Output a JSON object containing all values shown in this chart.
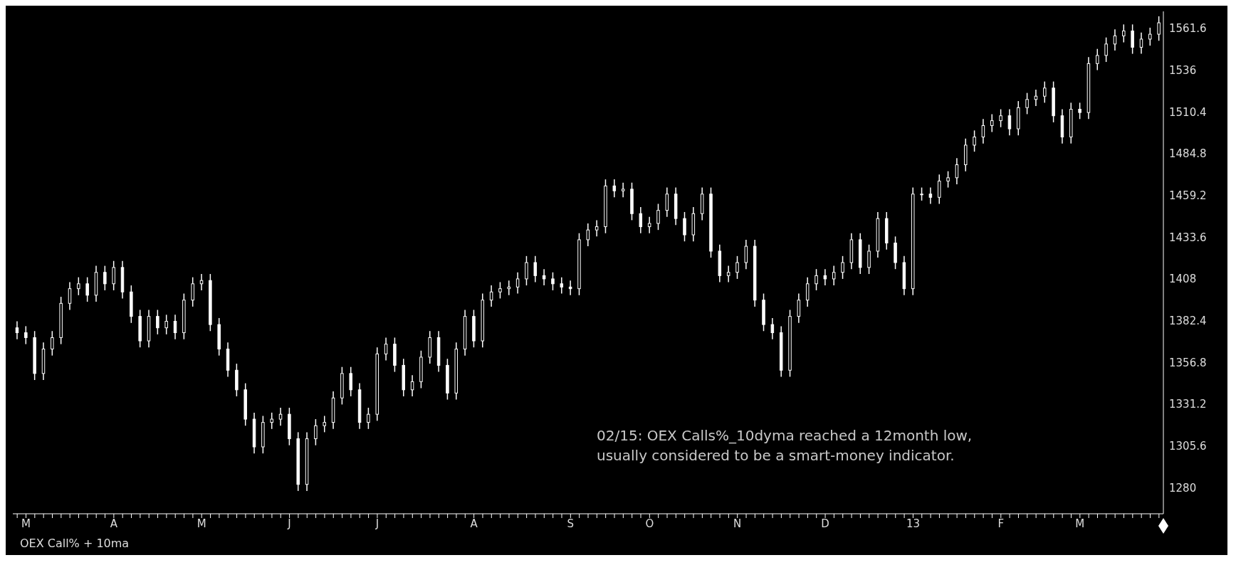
{
  "chart_data": {
    "type": "candlestick",
    "categories": [
      null,
      "M",
      null,
      null,
      null,
      null,
      null,
      null,
      null,
      null,
      null,
      "A",
      null,
      null,
      null,
      null,
      null,
      null,
      null,
      null,
      null,
      "M",
      null,
      null,
      null,
      null,
      null,
      null,
      null,
      null,
      null,
      "J",
      null,
      null,
      null,
      null,
      null,
      null,
      null,
      null,
      null,
      "J",
      null,
      null,
      null,
      null,
      null,
      null,
      null,
      null,
      null,
      null,
      "A",
      null,
      null,
      null,
      null,
      null,
      null,
      null,
      null,
      null,
      null,
      "S",
      null,
      null,
      null,
      null,
      null,
      null,
      null,
      null,
      "O",
      null,
      null,
      null,
      null,
      null,
      null,
      null,
      null,
      null,
      "N",
      null,
      null,
      null,
      null,
      null,
      null,
      null,
      null,
      null,
      "D",
      null,
      null,
      null,
      null,
      null,
      null,
      null,
      null,
      null,
      "13",
      null,
      null,
      null,
      null,
      null,
      null,
      null,
      null,
      null,
      "F",
      null,
      null,
      null,
      null,
      null,
      null,
      null,
      null,
      "M",
      null,
      null,
      null,
      null,
      null,
      null,
      null,
      null,
      null
    ],
    "ohlc": [
      [
        1378,
        1382,
        1371,
        1375
      ],
      [
        1375,
        1379,
        1368,
        1372
      ],
      [
        1372,
        1376,
        1346,
        1350
      ],
      [
        1350,
        1369,
        1346,
        1365
      ],
      [
        1365,
        1376,
        1361,
        1372
      ],
      [
        1372,
        1397,
        1368,
        1393
      ],
      [
        1393,
        1406,
        1389,
        1402
      ],
      [
        1402,
        1409,
        1398,
        1405
      ],
      [
        1405,
        1409,
        1394,
        1398
      ],
      [
        1398,
        1416,
        1394,
        1412
      ],
      [
        1412,
        1416,
        1401,
        1405
      ],
      [
        1405,
        1419,
        1401,
        1415
      ],
      [
        1415,
        1419,
        1396,
        1400
      ],
      [
        1400,
        1404,
        1381,
        1385
      ],
      [
        1385,
        1389,
        1366,
        1370
      ],
      [
        1370,
        1389,
        1366,
        1385
      ],
      [
        1385,
        1389,
        1374,
        1378
      ],
      [
        1378,
        1386,
        1374,
        1382
      ],
      [
        1382,
        1386,
        1371,
        1375
      ],
      [
        1375,
        1399,
        1371,
        1395
      ],
      [
        1395,
        1409,
        1391,
        1405
      ],
      [
        1405,
        1411,
        1401,
        1407
      ],
      [
        1407,
        1411,
        1376,
        1380
      ],
      [
        1380,
        1384,
        1361,
        1365
      ],
      [
        1365,
        1369,
        1348,
        1352
      ],
      [
        1352,
        1356,
        1336,
        1340
      ],
      [
        1340,
        1344,
        1318,
        1322
      ],
      [
        1322,
        1326,
        1301,
        1305
      ],
      [
        1305,
        1324,
        1301,
        1320
      ],
      [
        1320,
        1326,
        1316,
        1322
      ],
      [
        1322,
        1329,
        1318,
        1325
      ],
      [
        1325,
        1329,
        1306,
        1310
      ],
      [
        1310,
        1314,
        1278,
        1282
      ],
      [
        1282,
        1314,
        1278,
        1310
      ],
      [
        1310,
        1322,
        1306,
        1318
      ],
      [
        1318,
        1324,
        1314,
        1320
      ],
      [
        1320,
        1339,
        1316,
        1335
      ],
      [
        1335,
        1354,
        1331,
        1350
      ],
      [
        1350,
        1354,
        1336,
        1340
      ],
      [
        1340,
        1344,
        1316,
        1320
      ],
      [
        1320,
        1329,
        1316,
        1325
      ],
      [
        1325,
        1366,
        1321,
        1362
      ],
      [
        1362,
        1372,
        1358,
        1368
      ],
      [
        1368,
        1372,
        1351,
        1355
      ],
      [
        1355,
        1359,
        1336,
        1340
      ],
      [
        1340,
        1349,
        1336,
        1345
      ],
      [
        1345,
        1364,
        1341,
        1360
      ],
      [
        1360,
        1376,
        1356,
        1372
      ],
      [
        1372,
        1376,
        1351,
        1355
      ],
      [
        1355,
        1359,
        1334,
        1338
      ],
      [
        1338,
        1369,
        1334,
        1365
      ],
      [
        1365,
        1389,
        1361,
        1385
      ],
      [
        1385,
        1389,
        1366,
        1370
      ],
      [
        1370,
        1399,
        1366,
        1395
      ],
      [
        1395,
        1404,
        1391,
        1400
      ],
      [
        1400,
        1406,
        1396,
        1402
      ],
      [
        1402,
        1407,
        1398,
        1403
      ],
      [
        1403,
        1412,
        1399,
        1408
      ],
      [
        1408,
        1422,
        1404,
        1418
      ],
      [
        1418,
        1422,
        1406,
        1410
      ],
      [
        1410,
        1414,
        1404,
        1408
      ],
      [
        1408,
        1412,
        1401,
        1405
      ],
      [
        1405,
        1409,
        1399,
        1403
      ],
      [
        1403,
        1407,
        1398,
        1402
      ],
      [
        1402,
        1436,
        1398,
        1432
      ],
      [
        1432,
        1442,
        1428,
        1438
      ],
      [
        1438,
        1444,
        1434,
        1440
      ],
      [
        1440,
        1469,
        1436,
        1465
      ],
      [
        1465,
        1469,
        1458,
        1462
      ],
      [
        1462,
        1467,
        1458,
        1463
      ],
      [
        1463,
        1467,
        1444,
        1448
      ],
      [
        1448,
        1452,
        1436,
        1440
      ],
      [
        1440,
        1446,
        1436,
        1442
      ],
      [
        1442,
        1454,
        1438,
        1450
      ],
      [
        1450,
        1464,
        1446,
        1460
      ],
      [
        1460,
        1464,
        1441,
        1445
      ],
      [
        1445,
        1449,
        1431,
        1435
      ],
      [
        1435,
        1452,
        1431,
        1448
      ],
      [
        1448,
        1464,
        1444,
        1460
      ],
      [
        1460,
        1464,
        1421,
        1425
      ],
      [
        1425,
        1429,
        1406,
        1410
      ],
      [
        1410,
        1416,
        1406,
        1412
      ],
      [
        1412,
        1422,
        1408,
        1418
      ],
      [
        1418,
        1432,
        1414,
        1428
      ],
      [
        1428,
        1432,
        1391,
        1395
      ],
      [
        1395,
        1399,
        1376,
        1380
      ],
      [
        1380,
        1384,
        1371,
        1375
      ],
      [
        1375,
        1379,
        1348,
        1352
      ],
      [
        1352,
        1389,
        1348,
        1385
      ],
      [
        1385,
        1399,
        1381,
        1395
      ],
      [
        1395,
        1409,
        1391,
        1405
      ],
      [
        1405,
        1414,
        1401,
        1410
      ],
      [
        1410,
        1414,
        1404,
        1408
      ],
      [
        1408,
        1416,
        1404,
        1412
      ],
      [
        1412,
        1422,
        1408,
        1418
      ],
      [
        1418,
        1436,
        1414,
        1432
      ],
      [
        1432,
        1436,
        1411,
        1415
      ],
      [
        1415,
        1429,
        1411,
        1425
      ],
      [
        1425,
        1449,
        1421,
        1445
      ],
      [
        1445,
        1449,
        1426,
        1430
      ],
      [
        1430,
        1434,
        1414,
        1418
      ],
      [
        1418,
        1422,
        1398,
        1402
      ],
      [
        1402,
        1464,
        1398,
        1460
      ],
      [
        1460,
        1464,
        1456,
        1460
      ],
      [
        1460,
        1464,
        1454,
        1458
      ],
      [
        1458,
        1472,
        1454,
        1468
      ],
      [
        1468,
        1474,
        1464,
        1470
      ],
      [
        1470,
        1482,
        1466,
        1478
      ],
      [
        1478,
        1494,
        1474,
        1490
      ],
      [
        1490,
        1499,
        1486,
        1495
      ],
      [
        1495,
        1506,
        1491,
        1502
      ],
      [
        1502,
        1509,
        1498,
        1505
      ],
      [
        1505,
        1512,
        1501,
        1508
      ],
      [
        1508,
        1512,
        1496,
        1500
      ],
      [
        1500,
        1517,
        1496,
        1513
      ],
      [
        1513,
        1522,
        1509,
        1518
      ],
      [
        1518,
        1524,
        1514,
        1520
      ],
      [
        1520,
        1529,
        1516,
        1525
      ],
      [
        1525,
        1529,
        1504,
        1508
      ],
      [
        1508,
        1512,
        1491,
        1495
      ],
      [
        1495,
        1516,
        1491,
        1512
      ],
      [
        1512,
        1516,
        1506,
        1510
      ],
      [
        1510,
        1544,
        1506,
        1540
      ],
      [
        1540,
        1549,
        1536,
        1545
      ],
      [
        1545,
        1556,
        1541,
        1552
      ],
      [
        1552,
        1561,
        1548,
        1557
      ],
      [
        1557,
        1564,
        1553,
        1560
      ],
      [
        1560,
        1564,
        1546,
        1550
      ],
      [
        1550,
        1559,
        1546,
        1555
      ],
      [
        1555,
        1562,
        1551,
        1558
      ],
      [
        1558,
        1569,
        1554,
        1565
      ]
    ],
    "color": "#ffffff",
    "ylim": [
      1264,
      1572
    ],
    "yticks": [
      1280,
      1305.6,
      1331.2,
      1356.8,
      1382.4,
      1408,
      1433.6,
      1459.2,
      1484.8,
      1510.4,
      1536,
      1561.6
    ],
    "grid": false,
    "legend": false,
    "annotations": [
      "02/15:  OEX Calls%_10dyma reached a 12month low,\nusually considered to be a smart-money indicator.",
      "OEX Call% + 10ma"
    ]
  }
}
